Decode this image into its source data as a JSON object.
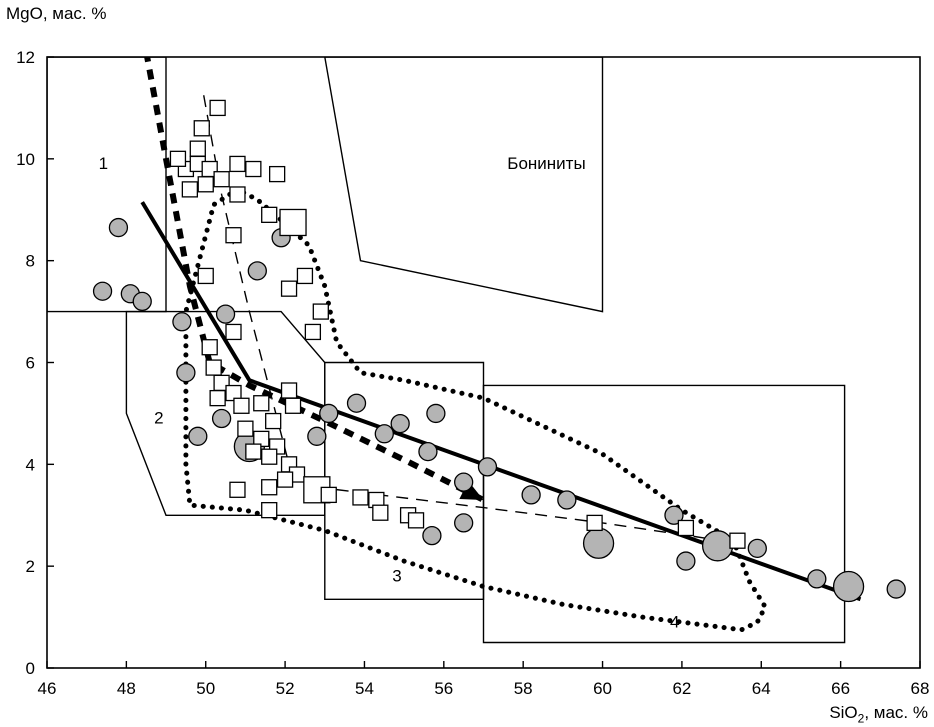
{
  "chart_data": {
    "type": "scatter",
    "ylabel": "MgO, мас. %",
    "xlabel_main": "SiO",
    "xlabel_sub": "2",
    "xlabel_unit": ", мас. %",
    "xlim": [
      46,
      68
    ],
    "ylim": [
      0,
      12
    ],
    "xticks": [
      46,
      48,
      50,
      52,
      54,
      56,
      58,
      60,
      62,
      64,
      66,
      68
    ],
    "yticks": [
      0,
      2,
      4,
      6,
      8,
      10,
      12
    ],
    "fields": [
      {
        "label": "1",
        "label_pos": [
          47.3,
          9.8
        ],
        "polygon": [
          [
            46,
            7
          ],
          [
            49,
            7
          ],
          [
            49,
            12
          ],
          [
            46,
            12
          ]
        ]
      },
      {
        "label": "2",
        "label_pos": [
          48.7,
          4.8
        ],
        "polygon": [
          [
            48,
            7
          ],
          [
            51.9,
            7
          ],
          [
            53,
            6
          ],
          [
            53,
            3
          ],
          [
            49,
            3
          ],
          [
            48,
            5
          ]
        ]
      },
      {
        "label": "3",
        "label_pos": [
          54.7,
          1.7
        ],
        "polygon": [
          [
            53,
            1.35
          ],
          [
            57,
            1.35
          ],
          [
            57,
            6
          ],
          [
            53,
            6
          ]
        ]
      },
      {
        "label": "4",
        "label_pos": [
          61.7,
          0.8
        ],
        "polygon": [
          [
            57,
            0.5
          ],
          [
            66.1,
            0.5
          ],
          [
            66.1,
            5.55
          ],
          [
            57,
            5.55
          ]
        ]
      },
      {
        "label": "Бониниты",
        "label_pos": [
          57.6,
          9.8
        ],
        "polygon": [
          [
            53,
            12
          ],
          [
            53.9,
            8
          ],
          [
            60,
            7
          ],
          [
            60,
            12
          ]
        ]
      }
    ],
    "series": [
      {
        "marker": "circle",
        "color": "#b4b4b4",
        "points": [
          [
            47.4,
            7.4,
            1
          ],
          [
            47.8,
            8.65,
            1
          ],
          [
            48.1,
            7.35,
            1
          ],
          [
            48.4,
            7.2,
            1
          ],
          [
            49.4,
            6.8,
            1
          ],
          [
            49.5,
            5.8,
            1
          ],
          [
            49.8,
            4.55,
            1
          ],
          [
            50.4,
            4.9,
            1
          ],
          [
            50.5,
            6.95,
            1
          ],
          [
            51.1,
            4.35,
            2
          ],
          [
            51.3,
            7.8,
            1
          ],
          [
            51.9,
            8.45,
            1
          ],
          [
            52.8,
            4.55,
            1
          ],
          [
            53.1,
            5.0,
            1
          ],
          [
            53.8,
            5.2,
            1
          ],
          [
            54.5,
            4.6,
            1
          ],
          [
            54.9,
            4.8,
            1
          ],
          [
            55.6,
            4.25,
            1
          ],
          [
            55.7,
            2.6,
            1
          ],
          [
            55.8,
            5.0,
            1
          ],
          [
            56.5,
            3.65,
            1
          ],
          [
            56.5,
            2.85,
            1
          ],
          [
            57.1,
            3.95,
            1
          ],
          [
            58.2,
            3.4,
            1
          ],
          [
            59.1,
            3.3,
            1
          ],
          [
            59.9,
            2.45,
            2
          ],
          [
            61.8,
            3.0,
            1
          ],
          [
            62.1,
            2.1,
            1
          ],
          [
            62.9,
            2.4,
            2
          ],
          [
            63.9,
            2.35,
            1
          ],
          [
            65.4,
            1.75,
            1
          ],
          [
            66.2,
            1.6,
            2
          ],
          [
            67.4,
            1.55,
            1
          ]
        ]
      },
      {
        "marker": "square",
        "color": "#ffffff",
        "points": [
          [
            50.3,
            11.0,
            1
          ],
          [
            49.9,
            10.6,
            1
          ],
          [
            49.8,
            10.2,
            1
          ],
          [
            50.0,
            9.5,
            1
          ],
          [
            49.5,
            9.8,
            1
          ],
          [
            49.3,
            10.0,
            1
          ],
          [
            49.6,
            9.4,
            1
          ],
          [
            49.8,
            9.9,
            1
          ],
          [
            50.1,
            9.8,
            1
          ],
          [
            50.4,
            9.6,
            1
          ],
          [
            50.8,
            9.9,
            1
          ],
          [
            51.2,
            9.8,
            1
          ],
          [
            51.8,
            9.7,
            1
          ],
          [
            50.8,
            9.3,
            1
          ],
          [
            51.6,
            8.9,
            1
          ],
          [
            52.2,
            8.75,
            2
          ],
          [
            50.7,
            8.5,
            1
          ],
          [
            50.0,
            7.7,
            1
          ],
          [
            52.5,
            7.7,
            1
          ],
          [
            52.1,
            7.45,
            1
          ],
          [
            52.9,
            7.0,
            1
          ],
          [
            52.7,
            6.6,
            1
          ],
          [
            50.1,
            6.3,
            1
          ],
          [
            50.7,
            6.6,
            1
          ],
          [
            50.2,
            5.9,
            1
          ],
          [
            50.4,
            5.6,
            1
          ],
          [
            50.7,
            5.4,
            1
          ],
          [
            50.3,
            5.3,
            1
          ],
          [
            50.9,
            5.15,
            1
          ],
          [
            51.4,
            5.2,
            1
          ],
          [
            52.1,
            5.45,
            1
          ],
          [
            52.2,
            5.15,
            1
          ],
          [
            51.7,
            4.85,
            1
          ],
          [
            51.0,
            4.7,
            1
          ],
          [
            51.4,
            4.5,
            1
          ],
          [
            51.8,
            4.35,
            1
          ],
          [
            51.2,
            4.25,
            1
          ],
          [
            51.6,
            4.15,
            1
          ],
          [
            52.1,
            4.0,
            1
          ],
          [
            52.3,
            3.8,
            1
          ],
          [
            52.0,
            3.7,
            1
          ],
          [
            51.6,
            3.55,
            1
          ],
          [
            50.8,
            3.5,
            1
          ],
          [
            52.8,
            3.5,
            2
          ],
          [
            53.1,
            3.4,
            1
          ],
          [
            53.9,
            3.35,
            1
          ],
          [
            54.3,
            3.3,
            1
          ],
          [
            54.4,
            3.05,
            1
          ],
          [
            55.1,
            3.0,
            1
          ],
          [
            55.3,
            2.9,
            1
          ],
          [
            51.6,
            3.1,
            1
          ],
          [
            59.8,
            2.85,
            1
          ],
          [
            62.1,
            2.75,
            1
          ],
          [
            63.4,
            2.5,
            1
          ]
        ]
      }
    ],
    "lines": [
      {
        "style": "solid",
        "width": 4,
        "dash": "",
        "arrow": false,
        "points": [
          [
            48.4,
            9.15
          ],
          [
            51.1,
            5.65
          ],
          [
            66.5,
            1.35
          ]
        ]
      },
      {
        "style": "thick-dashed",
        "width": 6,
        "dash": "10 8",
        "arrow": true,
        "points": [
          [
            48.5,
            12.1
          ],
          [
            49.0,
            10.0
          ],
          [
            49.6,
            7.5
          ],
          [
            50.1,
            6.0
          ],
          [
            51.1,
            5.55
          ],
          [
            53.0,
            4.85
          ],
          [
            55.1,
            4.05
          ],
          [
            57.0,
            3.3
          ]
        ]
      },
      {
        "style": "thin-dashed",
        "width": 1.4,
        "dash": "12 8",
        "arrow": false,
        "points": [
          [
            49.95,
            11.25
          ],
          [
            50.4,
            9.3
          ],
          [
            51.1,
            7.0
          ],
          [
            51.6,
            5.5
          ],
          [
            52.2,
            3.7
          ]
        ]
      },
      {
        "style": "thin-dashed",
        "width": 1.4,
        "dash": "12 8",
        "arrow": false,
        "points": [
          [
            52.8,
            3.55
          ],
          [
            57.0,
            3.15
          ],
          [
            60.0,
            2.85
          ],
          [
            63.9,
            2.4
          ]
        ]
      }
    ],
    "envelopes": [
      {
        "style": "dotted",
        "width": 5,
        "dash": "0.1 9",
        "points": [
          [
            50.8,
            9.4
          ],
          [
            50.2,
            9.1
          ],
          [
            49.5,
            7.0
          ],
          [
            49.5,
            6.0
          ],
          [
            49.5,
            5.0
          ],
          [
            49.5,
            4.0
          ],
          [
            49.6,
            3.2
          ],
          [
            51.0,
            3.1
          ],
          [
            53.0,
            2.7
          ],
          [
            55.0,
            2.1
          ],
          [
            57.0,
            1.6
          ],
          [
            59.0,
            1.25
          ],
          [
            61.0,
            1.0
          ],
          [
            62.5,
            0.85
          ],
          [
            63.5,
            0.75
          ],
          [
            63.9,
            0.9
          ],
          [
            64.1,
            1.2
          ],
          [
            63.7,
            1.7
          ],
          [
            63.3,
            2.5
          ],
          [
            62.0,
            3.1
          ],
          [
            60.0,
            4.2
          ],
          [
            57.0,
            5.3
          ],
          [
            55.0,
            5.65
          ],
          [
            53.9,
            5.8
          ],
          [
            53.3,
            6.4
          ],
          [
            53.0,
            7.5
          ],
          [
            52.6,
            8.3
          ],
          [
            51.9,
            8.8
          ],
          [
            51.3,
            9.2
          ],
          [
            50.8,
            9.4
          ]
        ]
      }
    ]
  }
}
